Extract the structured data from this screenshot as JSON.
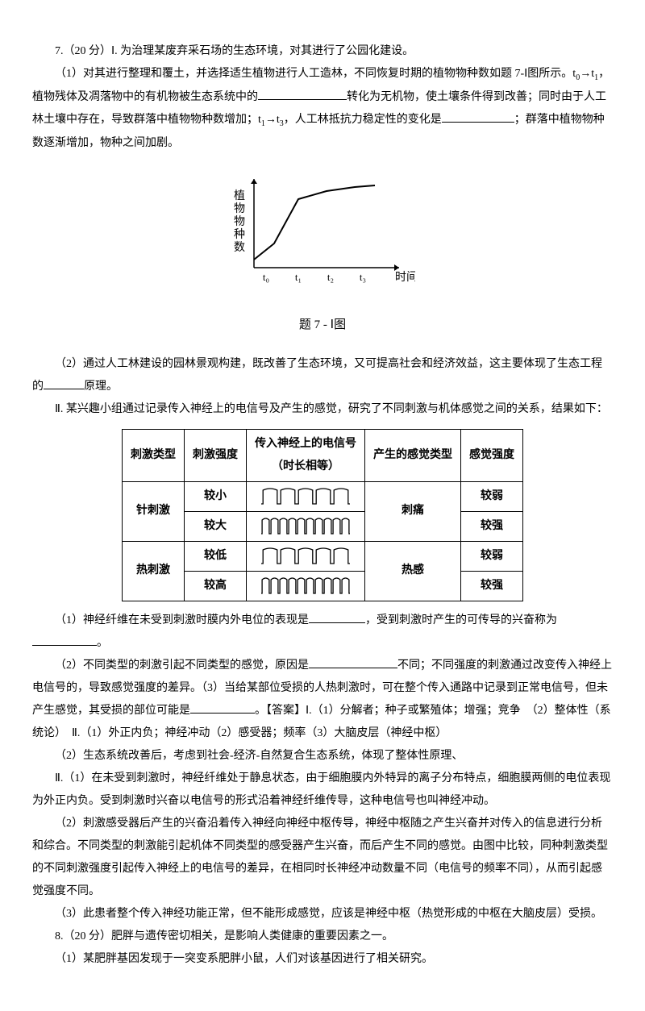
{
  "q7": {
    "header": "7.（20 分）Ⅰ. 为治理某废弃采石场的生态环境，对其进行了公园化建设。",
    "p1a": "（1）对其进行整理和覆土，并选择适生植物进行人工造林，不同恢复时期的植物物种数如题 7-Ⅰ图所示。t",
    "p1b": "→t",
    "p1c": "，植物残体及凋落物中的有机物被生态系统中的",
    "p1d": "转化为无机物，使土壤条件得到改善；同时由于人工林土壤中存在，导致群落中植物物种数增加；t",
    "p1e": "→t",
    "p1f": "，人工林抵抗力稳定性的变化是",
    "p1g": "；群落中植物物种数逐渐增加，物种之间加剧。"
  },
  "chart": {
    "ylabel": [
      "植",
      "物",
      "物",
      "种",
      "数"
    ],
    "xlabel": "时间",
    "xticks": [
      "t₀",
      "t₁",
      "t₂",
      "t₃"
    ],
    "caption": "题 7 - Ⅰ图",
    "points": [
      {
        "x": 30,
        "y": 110
      },
      {
        "x": 55,
        "y": 90
      },
      {
        "x": 85,
        "y": 35
      },
      {
        "x": 120,
        "y": 25
      },
      {
        "x": 155,
        "y": 20
      },
      {
        "x": 180,
        "y": 18
      }
    ],
    "axis_color": "#000",
    "line_color": "#000",
    "background": "#ffffff"
  },
  "q7_2": {
    "text": "（2）通过人工林建设的园林景观构建，既改善了生态环境，又可提高社会和经济效益，这主要体现了生态工程的",
    "tail": "原理。"
  },
  "part2_intro": "Ⅱ. 某兴趣小组通过记录传入神经上的电信号及产生的感觉，研究了不同刺激与机体感觉之间的关系，结果如下：",
  "table": {
    "headers": [
      "刺激类型",
      "刺激强度",
      "传入神经上的电信号\n（时长相等）",
      "产生的感觉类型",
      "感觉强度"
    ],
    "rows": [
      {
        "type": "针刺激",
        "intensity": "较小",
        "wave": "sparse",
        "sense": "刺痛",
        "degree": "较弱"
      },
      {
        "type": "",
        "intensity": "较大",
        "wave": "dense",
        "sense": "",
        "degree": "较强"
      },
      {
        "type": "热刺激",
        "intensity": "较低",
        "wave": "sparse",
        "sense": "热感",
        "degree": "较弱"
      },
      {
        "type": "",
        "intensity": "较高",
        "wave": "dense",
        "sense": "",
        "degree": "较强"
      }
    ]
  },
  "q2_1": {
    "a": "（1）神经纤维在未受到刺激时膜内外电位的表现是",
    "b": "，受到刺激时产生的可传导的兴奋称为",
    "c": "。"
  },
  "q2_2": {
    "a": "（2）不同类型的刺激引起不同类型的感觉，原因是",
    "b": "不同；不同强度的刺激通过改变传入神经上电信号的，导致感觉强度的差异。（3）当给某部位受损的人热刺激时，可在整个传入通路中记录到正常电信号，但未产生感觉，其受损的部位可能是",
    "c": "。【答案】Ⅰ.（1）分解者；种子或繁殖体；增强；竞争　（2）整体性（系统论）　Ⅱ.（1）外正内负；神经冲动（2）感受器；频率（3）大脑皮层（神经中枢）"
  },
  "explain": {
    "e1": "（2）生态系统改善后，考虑到社会-经济-自然复合生态系统，体现了整体性原理、",
    "e2": "Ⅱ.（1）在未受到刺激时，神经纤维处于静息状态，由于细胞膜内外特异的离子分布特点，细胞膜两侧的电位表现为外正内负。受到刺激时兴奋以电信号的形式沿着神经纤维传导，这种电信号也叫神经冲动。",
    "e3": "（2）刺激感受器后产生的兴奋沿着传入神经向神经中枢传导，神经中枢随之产生兴奋并对传入的信息进行分析和综合。不同类型的刺激能引起机体不同类型的感受器产生兴奋，而后产生不同的感觉。由图中比较，同种刺激类型的不同刺激强度引起传入神经上的电信号的差异，在相同时长神经冲动数量不同（电信号的频率不同），从而引起感觉强度不同。",
    "e4": "（3）此患者整个传入神经功能正常，但不能形成感觉，应该是神经中枢（热觉形成的中枢在大脑皮层）受损。"
  },
  "q8": {
    "header": "8.（20 分）肥胖与遗传密切相关，是影响人类健康的重要因素之一。",
    "p1": "（1）某肥胖基因发现于一突变系肥胖小鼠，人们对该基因进行了相关研究。"
  }
}
